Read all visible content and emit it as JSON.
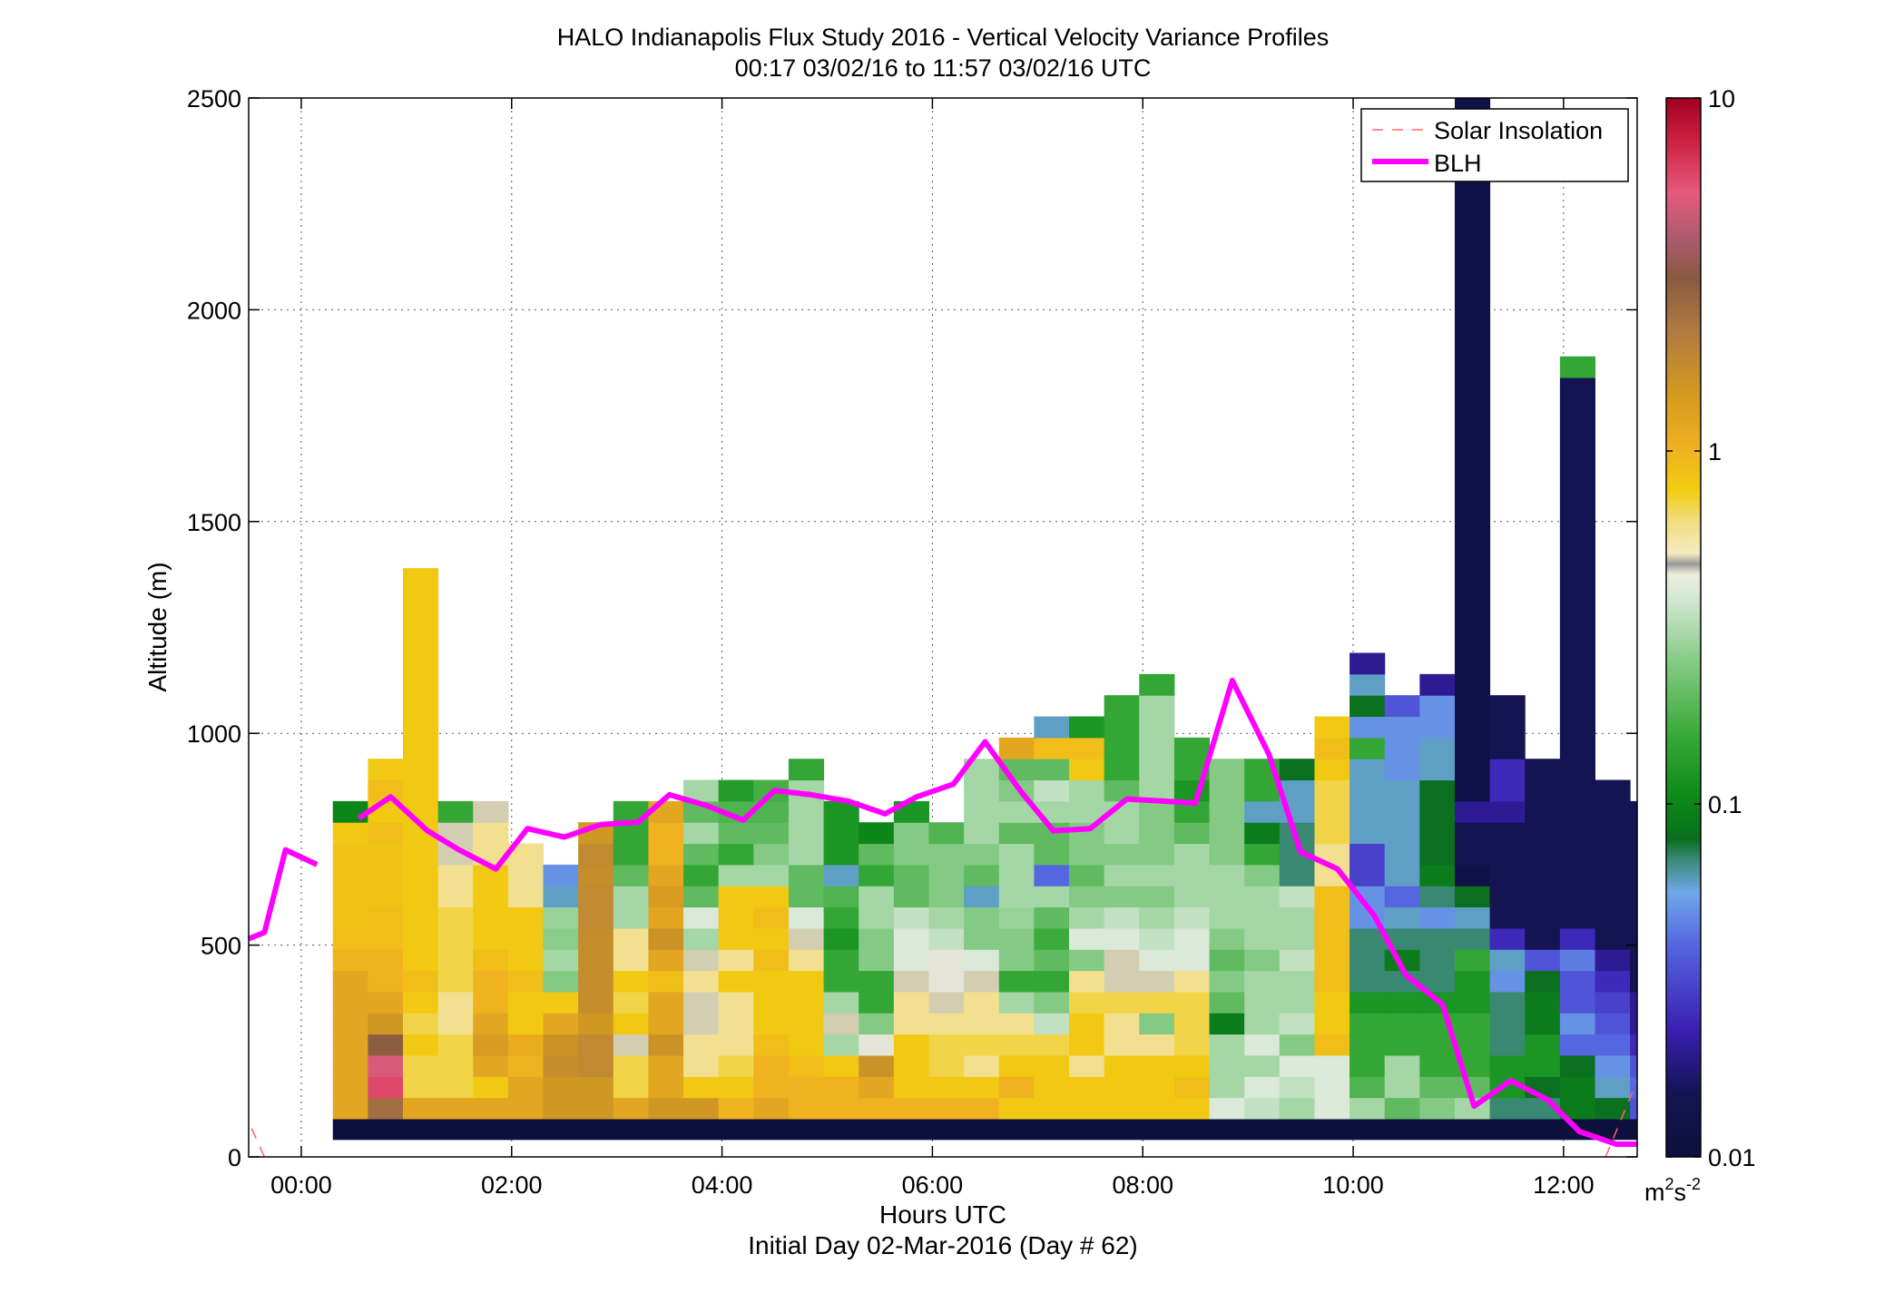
{
  "chart_data": {
    "type": "heatmap",
    "title": "HALO Indianapolis Flux Study 2016 - Vertical Velocity Variance Profiles",
    "subtitle": "00:17 03/02/16 to 11:57 03/02/16  UTC",
    "xlabel": "Hours UTC",
    "xlabel2": "Initial Day 02-Mar-2016 (Day # 62)",
    "ylabel": "Altitude (m)",
    "xlim": [
      -0.5,
      12.7
    ],
    "ylim": [
      0,
      2500
    ],
    "grid": true,
    "x_ticks": [
      0,
      2,
      4,
      6,
      8,
      10,
      12
    ],
    "x_tick_labels": [
      "00:00",
      "02:00",
      "04:00",
      "06:00",
      "08:00",
      "10:00",
      "12:00"
    ],
    "y_ticks": [
      0,
      500,
      1000,
      1500,
      2000,
      2500
    ],
    "y_tick_labels": [
      "0",
      "500",
      "1000",
      "1500",
      "2000",
      "2500"
    ],
    "colorbar": {
      "scale": "log",
      "range": [
        0.01,
        10
      ],
      "ticks": [
        0.01,
        0.1,
        1,
        10
      ],
      "tick_labels": [
        "0.01",
        "0.1",
        "1",
        "10"
      ],
      "unit_base": "m",
      "unit_sup1": "2",
      "unit_mid": "s",
      "unit_sup2": "-2"
    },
    "legend": {
      "placement": "top-right",
      "entries": [
        {
          "name": "Solar Insolation",
          "style": "dashed",
          "color": "#ff6666"
        },
        {
          "name": "BLH",
          "style": "solid",
          "color": "#ff00ff"
        }
      ]
    },
    "heatmap": {
      "x_start": 0.3,
      "x_step": 0.3333,
      "y_start": 90,
      "y_step": 50,
      "bottom_row_value": 0.01,
      "profiles": [
        [
          1.2,
          1.2,
          1.2,
          1.2,
          1.2,
          1.2,
          1.2,
          1.0,
          0.9,
          0.85,
          0.85,
          0.85,
          0.85,
          0.8,
          0.1
        ],
        [
          2.5,
          6,
          5,
          3,
          1.5,
          1.2,
          1.0,
          1.0,
          0.9,
          0.9,
          0.85,
          0.85,
          0.85,
          0.9,
          0.8,
          0.9,
          0.8
        ],
        [
          1.2,
          0.7,
          0.7,
          0.8,
          0.7,
          0.8,
          0.9,
          0.8,
          0.8,
          0.8,
          0.8,
          0.8,
          0.8,
          0.8,
          0.8,
          0.8,
          0.8,
          0.8,
          0.8,
          0.8,
          0.8,
          0.8,
          0.8,
          0.8,
          0.8,
          0.8
        ],
        [
          1.2,
          0.7,
          0.7,
          0.7,
          0.6,
          0.6,
          0.7,
          0.7,
          0.7,
          0.7,
          0.6,
          0.6,
          0.5,
          0.5,
          0.15
        ],
        [
          1.2,
          0.8,
          1.2,
          1.4,
          1.2,
          1.0,
          1.0,
          0.9,
          0.8,
          0.8,
          0.8,
          0.8,
          0.6,
          0.6,
          0.5
        ],
        [
          1.2,
          1.2,
          1.0,
          1.1,
          0.8,
          0.8,
          0.9,
          0.8,
          0.8,
          0.8,
          0.6,
          0.6,
          0.6
        ],
        [
          1.5,
          1.5,
          1.7,
          1.6,
          1.2,
          0.8,
          0.25,
          0.3,
          0.26,
          0.28,
          0.06,
          0.05
        ],
        [
          1.5,
          1.5,
          1.8,
          1.8,
          1.5,
          1.7,
          1.7,
          1.7,
          1.7,
          1.8,
          1.8,
          1.7,
          1.8,
          1.5
        ],
        [
          1.2,
          0.7,
          0.7,
          0.5,
          0.8,
          0.7,
          0.8,
          0.6,
          0.6,
          0.3,
          0.3,
          0.2,
          0.15,
          0.15,
          0.15
        ],
        [
          1.5,
          1.2,
          1.2,
          1.6,
          1.2,
          1.2,
          0.9,
          1.2,
          1.6,
          1.2,
          1.4,
          1.2,
          1.0,
          1.0,
          1.2
        ],
        [
          1.5,
          0.8,
          0.6,
          0.6,
          0.5,
          0.5,
          0.6,
          0.5,
          0.3,
          0.4,
          0.2,
          0.15,
          0.2,
          0.3,
          0.2,
          0.3
        ],
        [
          1.0,
          0.8,
          0.7,
          0.6,
          0.6,
          0.6,
          0.8,
          0.6,
          0.8,
          0.8,
          0.8,
          0.3,
          0.15,
          0.2,
          0.18,
          0.13
        ],
        [
          1.2,
          1.0,
          1.0,
          0.9,
          0.8,
          0.8,
          0.8,
          0.9,
          0.8,
          0.9,
          0.8,
          0.3,
          0.25,
          0.2,
          0.18,
          0.17
        ],
        [
          1.0,
          1.0,
          0.9,
          0.8,
          0.8,
          0.8,
          0.8,
          0.6,
          0.5,
          0.4,
          0.2,
          0.2,
          0.3,
          0.3,
          0.3,
          0.3,
          0.15
        ],
        [
          1.0,
          1.0,
          0.8,
          0.3,
          0.5,
          0.3,
          0.15,
          0.15,
          0.12,
          0.15,
          0.18,
          0.06,
          0.12,
          0.12,
          0.12
        ],
        [
          1.0,
          1.2,
          1.6,
          0.45,
          0.25,
          0.15,
          0.15,
          0.25,
          0.25,
          0.3,
          0.3,
          0.15,
          0.2,
          0.1
        ],
        [
          1.0,
          0.8,
          0.8,
          0.8,
          0.6,
          0.6,
          0.5,
          0.4,
          0.4,
          0.35,
          0.2,
          0.2,
          0.25,
          0.25,
          0.12
        ],
        [
          1.0,
          0.8,
          0.7,
          0.7,
          0.6,
          0.5,
          0.45,
          0.45,
          0.35,
          0.3,
          0.25,
          0.25,
          0.25,
          0.18
        ],
        [
          1.0,
          0.8,
          0.6,
          0.7,
          0.6,
          0.6,
          0.5,
          0.4,
          0.25,
          0.25,
          0.06,
          0.2,
          0.25,
          0.3,
          0.3,
          0.3,
          0.3
        ],
        [
          0.8,
          1.0,
          0.8,
          0.7,
          0.6,
          0.3,
          0.15,
          0.25,
          0.25,
          0.28,
          0.3,
          0.3,
          0.3,
          0.2,
          0.3,
          0.25,
          0.2,
          1.2
        ],
        [
          0.8,
          0.8,
          0.8,
          0.7,
          0.35,
          0.25,
          0.15,
          0.2,
          0.16,
          0.2,
          0.3,
          0.04,
          0.2,
          0.2,
          0.3,
          0.35,
          0.2,
          0.9,
          0.06
        ],
        [
          0.8,
          0.8,
          0.6,
          0.8,
          0.8,
          0.7,
          0.6,
          0.25,
          0.4,
          0.3,
          0.25,
          0.2,
          0.25,
          0.25,
          0.3,
          0.3,
          0.8,
          0.9,
          0.12
        ],
        [
          0.8,
          0.8,
          0.8,
          0.6,
          0.6,
          0.7,
          0.5,
          0.5,
          0.4,
          0.35,
          0.25,
          0.3,
          0.25,
          0.3,
          0.3,
          0.2,
          0.15,
          0.15,
          0.15,
          0.15
        ],
        [
          0.8,
          0.8,
          0.8,
          0.6,
          0.25,
          0.7,
          0.5,
          0.4,
          0.35,
          0.3,
          0.25,
          0.3,
          0.25,
          0.25,
          0.25,
          0.3,
          0.3,
          0.3,
          0.3,
          0.3,
          0.15
        ],
        [
          0.8,
          0.9,
          0.8,
          0.7,
          0.7,
          0.7,
          0.6,
          0.4,
          0.4,
          0.35,
          0.3,
          0.3,
          0.3,
          0.2,
          0.15,
          0.12,
          0.15,
          0.15
        ],
        [
          0.4,
          0.3,
          0.3,
          0.3,
          0.09,
          0.2,
          0.25,
          0.2,
          0.25,
          0.3,
          0.3,
          0.3,
          0.25,
          0.25,
          0.25,
          0.25,
          0.25
        ],
        [
          0.35,
          0.4,
          0.3,
          0.4,
          0.3,
          0.3,
          0.3,
          0.25,
          0.3,
          0.3,
          0.3,
          0.25,
          0.15,
          0.09,
          0.06,
          0.15,
          0.15
        ],
        [
          0.3,
          0.35,
          0.4,
          0.25,
          0.35,
          0.3,
          0.3,
          0.35,
          0.3,
          0.3,
          0.35,
          0.07,
          0.07,
          0.07,
          0.06,
          0.06,
          0.08
        ],
        [
          0.4,
          0.4,
          0.4,
          0.9,
          0.8,
          0.8,
          0.9,
          0.9,
          0.9,
          0.9,
          0.9,
          0.6,
          0.6,
          0.7,
          0.7,
          0.7,
          0.8,
          0.9,
          0.8
        ],
        [
          0.3,
          0.18,
          0.15,
          0.15,
          0.15,
          0.12,
          0.07,
          0.07,
          0.07,
          0.05,
          0.05,
          0.03,
          0.03,
          0.06,
          0.06,
          0.06,
          0.06,
          0.15,
          0.05,
          0.08,
          0.06,
          0.02
        ],
        [
          0.2,
          0.3,
          0.3,
          0.15,
          0.15,
          0.12,
          0.07,
          0.09,
          0.07,
          0.06,
          0.04,
          0.06,
          0.06,
          0.06,
          0.06,
          0.06,
          0.05,
          0.05,
          0.05,
          0.035
        ],
        [
          0.25,
          0.2,
          0.15,
          0.15,
          0.15,
          0.12,
          0.07,
          0.07,
          0.07,
          0.05,
          0.07,
          0.09,
          0.08,
          0.08,
          0.08,
          0.08,
          0.06,
          0.06,
          0.05,
          0.05,
          0.02
        ],
        [
          0.3,
          0.2,
          0.15,
          0.15,
          0.15,
          0.12,
          0.12,
          0.15,
          0.07,
          0.06,
          0.08,
          0.012,
          0.015,
          0.015,
          0.02,
          0.012,
          0.012,
          0.012,
          0.012,
          0.012,
          0.012,
          0.012,
          0.012,
          0.012,
          0.012,
          0.012,
          0.012,
          0.012,
          0.012,
          0.012,
          0.012,
          0.012,
          0.012,
          0.012,
          0.012,
          0.012,
          0.012,
          0.012,
          0.012,
          0.012,
          0.012,
          0.012,
          0.012,
          0.012,
          0.012,
          0.012,
          0.012,
          0.012,
          0.012,
          0.012,
          0.012,
          0.012,
          0.012,
          0.012,
          0.012,
          0.012,
          0.012,
          0.012,
          0.012,
          0.012,
          0.012,
          0.012,
          0.012,
          0.012,
          0.012,
          0.012,
          0.012,
          0.012,
          0.012,
          0.012,
          0.012,
          0.012,
          0.012,
          0.012,
          0.012,
          0.012,
          0.012,
          0.012,
          0.012,
          0.012,
          0.012,
          0.012,
          0.012,
          0.012,
          0.012,
          0.012,
          0.012,
          0.012,
          0.012,
          0.012,
          0.012,
          0.012,
          0.012,
          0.012,
          0.012,
          0.012,
          0.012,
          0.012,
          0.012,
          0.012,
          0.012,
          0.04
        ],
        [
          0.07,
          0.12,
          0.12,
          0.07,
          0.07,
          0.07,
          0.05,
          0.06,
          0.025,
          0.015,
          0.015,
          0.015,
          0.015,
          0.015,
          0.02,
          0.025,
          0.025,
          0.015,
          0.015,
          0.015
        ],
        [
          0.07,
          0.08,
          0.12,
          0.12,
          0.09,
          0.09,
          0.08,
          0.035,
          0.015,
          0.015,
          0.015,
          0.015,
          0.015,
          0.015,
          0.015,
          0.015,
          0.015
        ],
        [
          0.09,
          0.09,
          0.08,
          0.04,
          0.05,
          0.035,
          0.035,
          0.045,
          0.025,
          0.015,
          0.015,
          0.015,
          0.015,
          0.015,
          0.015,
          0.015,
          0.015,
          0.015,
          0.015,
          0.015,
          0.015,
          0.015,
          0.015,
          0.015,
          0.015,
          0.015,
          0.015,
          0.015,
          0.015,
          0.015,
          0.015,
          0.015,
          0.015,
          0.015,
          0.015,
          0.15
        ],
        [
          0.08,
          0.06,
          0.05,
          0.04,
          0.035,
          0.03,
          0.025,
          0.02,
          0.015,
          0.015,
          0.015,
          0.015,
          0.015,
          0.015,
          0.015,
          0.015
        ],
        [
          0.035,
          0.04,
          0.035,
          0.025,
          0.02,
          0.02,
          0.015,
          0.015,
          0.015,
          0.015,
          0.015,
          0.015,
          0.015,
          0.015,
          0.015
        ]
      ]
    },
    "blh": {
      "x": [
        -0.5,
        -0.35,
        -0.15,
        0.15,
        null,
        0.55,
        0.85,
        1.2,
        1.5,
        1.85,
        2.15,
        2.5,
        2.85,
        3.2,
        3.5,
        3.85,
        4.2,
        4.5,
        4.85,
        5.2,
        5.55,
        5.85,
        6.2,
        6.5,
        6.85,
        7.15,
        7.5,
        7.85,
        8.2,
        8.5,
        8.85,
        9.2,
        9.5,
        9.85,
        10.2,
        10.5,
        10.85,
        11.15,
        11.5,
        11.85,
        12.15,
        12.5,
        12.7
      ],
      "y": [
        515,
        530,
        725,
        690,
        null,
        800,
        850,
        770,
        725,
        680,
        775,
        755,
        785,
        790,
        855,
        830,
        795,
        865,
        855,
        840,
        810,
        850,
        880,
        980,
        860,
        770,
        775,
        845,
        840,
        835,
        1125,
        950,
        720,
        680,
        570,
        430,
        360,
        120,
        180,
        135,
        60,
        30,
        30
      ]
    },
    "solar": {
      "segments": [
        {
          "x": [
            -0.55,
            -0.35
          ],
          "y": [
            110,
            0
          ]
        },
        {
          "x": [
            12.4,
            12.7
          ],
          "y": [
            0,
            180
          ]
        }
      ]
    }
  }
}
